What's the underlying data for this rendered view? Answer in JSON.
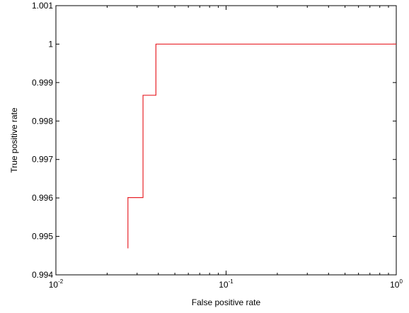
{
  "chart_data": {
    "type": "line",
    "title": "",
    "xlabel": "False positive rate",
    "ylabel": "True positive rate",
    "xscale": "log",
    "xlim": [
      0.01,
      1
    ],
    "ylim": [
      0.994,
      1.001
    ],
    "grid": false,
    "line_color": "#e8242a",
    "x_ticks": [
      {
        "value": 0.01,
        "base": "10",
        "exp": "-2"
      },
      {
        "value": 0.1,
        "base": "10",
        "exp": "-1"
      },
      {
        "value": 1,
        "base": "10",
        "exp": "0"
      }
    ],
    "y_ticks": [
      {
        "value": 0.994,
        "label": "0.994"
      },
      {
        "value": 0.995,
        "label": "0.995"
      },
      {
        "value": 0.996,
        "label": "0.996"
      },
      {
        "value": 0.997,
        "label": "0.997"
      },
      {
        "value": 0.998,
        "label": "0.998"
      },
      {
        "value": 0.999,
        "label": "0.999"
      },
      {
        "value": 1.0,
        "label": "1"
      },
      {
        "value": 1.001,
        "label": "1.001"
      }
    ],
    "series": [
      {
        "x": [
          0.0265,
          0.0265,
          0.0325,
          0.0325,
          0.0387,
          0.0387,
          1.0
        ],
        "y": [
          0.99469,
          0.99601,
          0.99601,
          0.99867,
          0.99867,
          1.0,
          1.0
        ]
      }
    ]
  }
}
